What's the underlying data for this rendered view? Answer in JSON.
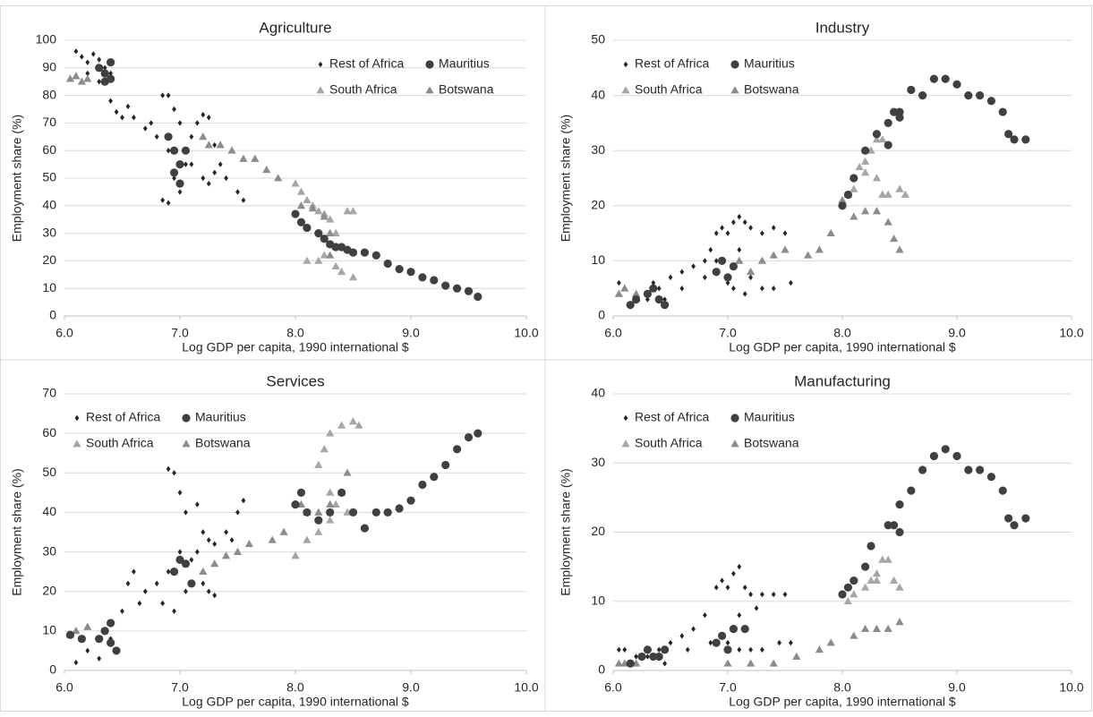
{
  "chart_data": [
    {
      "type": "scatter",
      "title": "Agriculture",
      "xlabel": "Log GDP per capita, 1990 international $",
      "ylabel": "Employment share (%)",
      "xlim": [
        6,
        10
      ],
      "xticks": [
        {
          "value": 6,
          "label": "6.0"
        },
        {
          "value": 7,
          "label": "7.0"
        },
        {
          "value": 8,
          "label": "8.0"
        },
        {
          "value": 9,
          "label": "9.0"
        },
        {
          "value": 10,
          "label": "10.0"
        }
      ],
      "ylim": [
        0,
        100
      ],
      "yticks": [
        0,
        10,
        20,
        30,
        40,
        50,
        60,
        70,
        80,
        90,
        100
      ],
      "grid": true,
      "legend": "upper right",
      "series": [
        {
          "name": "Rest of Africa",
          "color": "#262626",
          "marker": "diamond",
          "x": [
            6.1,
            6.15,
            6.2,
            6.25,
            6.3,
            6.35,
            6.4,
            6.3,
            6.4,
            6.45,
            6.5,
            6.6,
            6.7,
            6.8,
            6.85,
            6.9,
            6.95,
            7.0,
            6.9,
            6.95,
            6.85,
            6.9,
            7.0,
            7.05,
            7.1,
            7.15,
            7.2,
            7.25,
            7.3,
            7.35,
            7.4,
            7.5,
            7.55,
            7.1,
            7.2,
            7.25,
            7.3,
            6.2,
            6.55,
            6.75
          ],
          "y": [
            96,
            94,
            92,
            95,
            93,
            90,
            88,
            85,
            78,
            74,
            72,
            72,
            68,
            65,
            80,
            80,
            75,
            70,
            60,
            50,
            42,
            41,
            45,
            55,
            65,
            70,
            73,
            72,
            62,
            55,
            50,
            45,
            42,
            55,
            50,
            48,
            52,
            88,
            76,
            70
          ]
        },
        {
          "name": "Mauritius",
          "color": "#404040",
          "marker": "circle",
          "x": [
            6.3,
            6.35,
            6.4,
            6.4,
            6.35,
            6.9,
            6.95,
            7.0,
            6.95,
            7.0,
            7.05,
            8.0,
            8.05,
            8.1,
            8.2,
            8.25,
            8.3,
            8.35,
            8.4,
            8.45,
            8.5,
            8.6,
            8.7,
            8.8,
            8.9,
            9.0,
            9.1,
            9.2,
            9.3,
            9.4,
            9.5,
            9.58
          ],
          "y": [
            90,
            88,
            86,
            92,
            85,
            65,
            60,
            55,
            52,
            48,
            60,
            37,
            34,
            32,
            30,
            28,
            26,
            25,
            25,
            24,
            23,
            23,
            22,
            19,
            17,
            16,
            14,
            13,
            11,
            10,
            9,
            7
          ]
        },
        {
          "name": "South Africa",
          "color": "#a6a6a6",
          "marker": "triangle",
          "x": [
            8.0,
            8.05,
            8.1,
            8.15,
            8.2,
            8.25,
            8.3,
            8.35,
            8.3,
            8.25,
            8.2,
            8.1,
            8.35,
            8.4,
            8.5,
            8.45,
            8.5
          ],
          "y": [
            48,
            45,
            42,
            40,
            38,
            37,
            35,
            30,
            26,
            22,
            20,
            20,
            18,
            16,
            14,
            38,
            38
          ]
        },
        {
          "name": "Botswana",
          "color": "#8c8c8c",
          "marker": "triangle",
          "x": [
            6.05,
            6.1,
            6.15,
            6.2,
            7.2,
            7.25,
            7.35,
            7.45,
            7.55,
            7.65,
            7.75,
            7.85,
            8.05,
            8.15,
            8.25,
            8.3,
            8.35,
            8.3
          ],
          "y": [
            86,
            87,
            85,
            86,
            65,
            62,
            62,
            60,
            57,
            57,
            53,
            50,
            40,
            39,
            36,
            30,
            25,
            22
          ]
        }
      ]
    },
    {
      "type": "scatter",
      "title": "Industry",
      "xlabel": "Log GDP per capita, 1990 international $",
      "ylabel": "Employment share (%)",
      "xlim": [
        6,
        10
      ],
      "xticks": [
        {
          "value": 6,
          "label": "6.0"
        },
        {
          "value": 7,
          "label": "7.0"
        },
        {
          "value": 8,
          "label": "8.0"
        },
        {
          "value": 9,
          "label": "9.0"
        },
        {
          "value": 10,
          "label": "10.0"
        }
      ],
      "ylim": [
        0,
        50
      ],
      "yticks": [
        0,
        10,
        20,
        30,
        40,
        50
      ],
      "grid": true,
      "legend": "upper left",
      "series": [
        {
          "name": "Rest of Africa",
          "color": "#262626",
          "marker": "diamond",
          "x": [
            6.05,
            6.1,
            6.2,
            6.3,
            6.35,
            6.4,
            6.5,
            6.6,
            6.7,
            6.8,
            6.85,
            6.9,
            6.95,
            7.0,
            7.05,
            7.1,
            7.15,
            7.2,
            7.3,
            7.4,
            7.5,
            7.0,
            7.05,
            7.15,
            7.2,
            7.3,
            7.4,
            7.55,
            6.9,
            6.8,
            6.6,
            6.45,
            6.15,
            7.1
          ],
          "y": [
            6,
            5,
            4,
            3,
            6,
            5,
            7,
            8,
            9,
            10,
            12,
            15,
            16,
            15,
            17,
            18,
            17,
            16,
            15,
            16,
            15,
            6,
            5,
            4,
            7,
            5,
            5,
            6,
            10,
            7,
            5,
            3,
            2,
            12
          ]
        },
        {
          "name": "Mauritius",
          "color": "#404040",
          "marker": "circle",
          "x": [
            6.15,
            6.2,
            6.3,
            6.35,
            6.4,
            6.45,
            6.9,
            6.95,
            7.0,
            7.05,
            8.0,
            8.05,
            8.1,
            8.2,
            8.3,
            8.4,
            8.45,
            8.5,
            8.5,
            8.4,
            8.6,
            8.7,
            8.8,
            8.9,
            9.0,
            9.1,
            9.2,
            9.3,
            9.4,
            9.45,
            9.5,
            9.6
          ],
          "y": [
            2,
            3,
            4,
            5,
            3,
            2,
            8,
            10,
            7,
            9,
            20,
            22,
            25,
            30,
            33,
            35,
            37,
            37,
            36,
            31,
            41,
            40,
            43,
            43,
            42,
            40,
            40,
            39,
            37,
            33,
            32,
            32
          ]
        },
        {
          "name": "South Africa",
          "color": "#a6a6a6",
          "marker": "triangle",
          "x": [
            8.1,
            8.15,
            8.2,
            8.25,
            8.3,
            8.35,
            8.3,
            8.35,
            8.4,
            8.5,
            8.55,
            8.2
          ],
          "y": [
            23,
            27,
            28,
            30,
            32,
            32,
            25,
            22,
            22,
            23,
            22,
            26
          ]
        },
        {
          "name": "Botswana",
          "color": "#8c8c8c",
          "marker": "triangle",
          "x": [
            6.05,
            6.1,
            6.2,
            7.1,
            7.2,
            7.3,
            7.4,
            7.5,
            7.7,
            7.8,
            7.9,
            8.0,
            8.05,
            8.1,
            8.2,
            8.3,
            8.4,
            8.45,
            8.5
          ],
          "y": [
            4,
            5,
            4,
            10,
            8,
            10,
            11,
            12,
            11,
            12,
            15,
            21,
            22,
            18,
            19,
            19,
            17,
            14,
            12
          ]
        }
      ]
    },
    {
      "type": "scatter",
      "title": "Services",
      "xlabel": "Log GDP per capita, 1990 international $",
      "ylabel": "Employment share (%)",
      "xlim": [
        6,
        10
      ],
      "xticks": [
        {
          "value": 6,
          "label": "6.0"
        },
        {
          "value": 7,
          "label": "7.0"
        },
        {
          "value": 8,
          "label": "8.0"
        },
        {
          "value": 9,
          "label": "9.0"
        },
        {
          "value": 10,
          "label": "10.0"
        }
      ],
      "ylim": [
        0,
        70
      ],
      "yticks": [
        0,
        10,
        20,
        30,
        40,
        50,
        60,
        70
      ],
      "grid": true,
      "legend": "upper left",
      "series": [
        {
          "name": "Rest of Africa",
          "color": "#262626",
          "marker": "diamond",
          "x": [
            6.1,
            6.2,
            6.3,
            6.4,
            6.5,
            6.55,
            6.6,
            6.7,
            6.8,
            6.85,
            6.9,
            6.9,
            6.95,
            7.0,
            7.05,
            7.0,
            7.1,
            7.15,
            7.2,
            7.25,
            7.3,
            7.4,
            7.5,
            7.55,
            7.15,
            7.2,
            7.25,
            7.3,
            6.95,
            7.05,
            6.65,
            7.45
          ],
          "y": [
            2,
            5,
            3,
            8,
            15,
            22,
            25,
            20,
            22,
            17,
            25,
            51,
            50,
            45,
            40,
            30,
            28,
            30,
            35,
            33,
            32,
            35,
            40,
            43,
            42,
            22,
            20,
            19,
            15,
            20,
            17,
            33
          ]
        },
        {
          "name": "Mauritius",
          "color": "#404040",
          "marker": "circle",
          "x": [
            6.05,
            6.15,
            6.3,
            6.35,
            6.4,
            6.45,
            6.4,
            6.95,
            7.0,
            7.05,
            7.1,
            8.0,
            8.05,
            8.1,
            8.2,
            8.3,
            8.4,
            8.5,
            8.6,
            8.7,
            8.8,
            8.9,
            9.0,
            9.1,
            9.2,
            9.3,
            9.4,
            9.5,
            9.58
          ],
          "y": [
            9,
            8,
            8,
            10,
            7,
            5,
            12,
            25,
            28,
            27,
            22,
            42,
            45,
            40,
            38,
            40,
            45,
            40,
            36,
            40,
            40,
            41,
            43,
            47,
            49,
            52,
            56,
            59,
            60
          ]
        },
        {
          "name": "South Africa",
          "color": "#a6a6a6",
          "marker": "triangle",
          "x": [
            8.0,
            8.1,
            8.2,
            8.3,
            8.35,
            8.3,
            8.2,
            8.25,
            8.3,
            8.4,
            8.5,
            8.55,
            8.45
          ],
          "y": [
            29,
            33,
            35,
            38,
            42,
            45,
            52,
            56,
            60,
            62,
            63,
            62,
            40
          ]
        },
        {
          "name": "Botswana",
          "color": "#8c8c8c",
          "marker": "triangle",
          "x": [
            6.05,
            6.1,
            6.2,
            7.2,
            7.3,
            7.4,
            7.5,
            7.6,
            7.8,
            7.9,
            8.05,
            8.1,
            8.2,
            8.3,
            8.4,
            8.45
          ],
          "y": [
            9,
            10,
            11,
            25,
            27,
            29,
            30,
            32,
            33,
            35,
            42,
            40,
            40,
            42,
            45,
            50
          ]
        }
      ]
    },
    {
      "type": "scatter",
      "title": "Manufacturing",
      "xlabel": "Log GDP per capita, 1990 international $",
      "ylabel": "Employment share (%)",
      "xlim": [
        6,
        10
      ],
      "xticks": [
        {
          "value": 6,
          "label": "6.0"
        },
        {
          "value": 7,
          "label": "7.0"
        },
        {
          "value": 8,
          "label": "8.0"
        },
        {
          "value": 9,
          "label": "9.0"
        },
        {
          "value": 10,
          "label": "10.0"
        }
      ],
      "ylim": [
        0,
        40
      ],
      "yticks": [
        0,
        10,
        20,
        30,
        40
      ],
      "grid": true,
      "legend": "upper left",
      "series": [
        {
          "name": "Rest of Africa",
          "color": "#262626",
          "marker": "diamond",
          "x": [
            6.05,
            6.1,
            6.2,
            6.3,
            6.4,
            6.5,
            6.6,
            6.7,
            6.8,
            6.9,
            6.95,
            7.0,
            7.05,
            7.1,
            7.15,
            7.2,
            7.3,
            7.4,
            7.5,
            7.0,
            7.1,
            7.2,
            7.3,
            7.45,
            7.55,
            6.85,
            6.65,
            6.45,
            7.1,
            7.25
          ],
          "y": [
            3,
            3,
            2,
            2,
            3,
            4,
            5,
            6,
            8,
            12,
            13,
            12,
            14,
            15,
            12,
            11,
            11,
            11,
            11,
            4,
            3,
            3,
            3,
            4,
            4,
            4,
            3,
            1,
            8,
            9
          ]
        },
        {
          "name": "Mauritius",
          "color": "#404040",
          "marker": "circle",
          "x": [
            6.15,
            6.25,
            6.3,
            6.35,
            6.4,
            6.45,
            6.9,
            6.95,
            7.0,
            7.05,
            7.15,
            8.0,
            8.05,
            8.1,
            8.2,
            8.25,
            8.4,
            8.45,
            8.5,
            8.5,
            8.6,
            8.7,
            8.8,
            8.9,
            9.0,
            9.1,
            9.2,
            9.3,
            9.4,
            9.45,
            9.5,
            9.6
          ],
          "y": [
            1,
            2,
            3,
            2,
            2,
            3,
            4,
            5,
            3,
            6,
            6,
            11,
            12,
            13,
            15,
            18,
            21,
            21,
            20,
            24,
            26,
            29,
            31,
            32,
            31,
            29,
            29,
            28,
            26,
            22,
            21,
            22
          ]
        },
        {
          "name": "South Africa",
          "color": "#a6a6a6",
          "marker": "triangle",
          "x": [
            8.05,
            8.1,
            8.2,
            8.3,
            8.35,
            8.4,
            8.3,
            8.45,
            8.5,
            8.25
          ],
          "y": [
            10,
            11,
            12,
            14,
            16,
            16,
            13,
            13,
            12,
            13
          ]
        },
        {
          "name": "Botswana",
          "color": "#8c8c8c",
          "marker": "triangle",
          "x": [
            6.05,
            6.1,
            6.2,
            7.0,
            7.2,
            7.4,
            7.6,
            7.8,
            7.9,
            8.1,
            8.2,
            8.3,
            8.4,
            8.5
          ],
          "y": [
            1,
            1,
            1,
            1,
            1,
            1,
            2,
            3,
            4,
            5,
            6,
            6,
            6,
            7
          ]
        }
      ]
    }
  ]
}
